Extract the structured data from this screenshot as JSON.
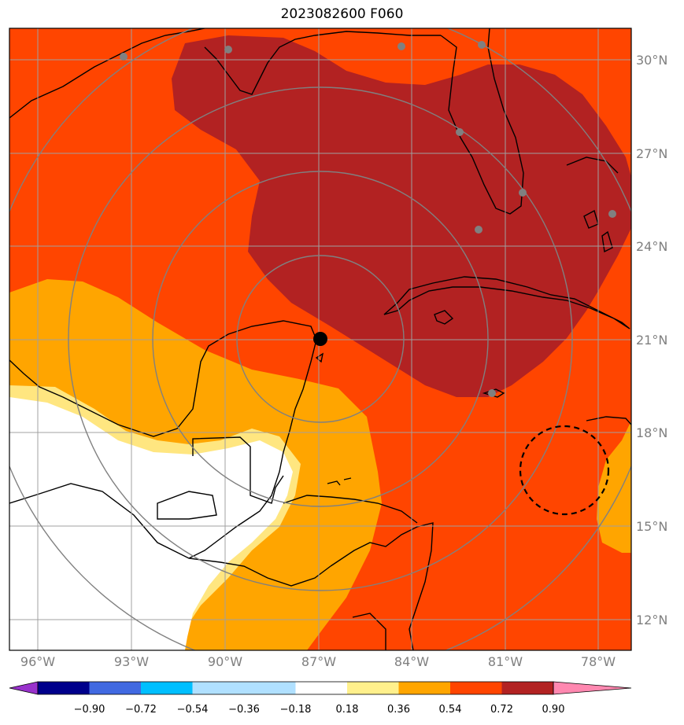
{
  "title": "2023082600 F060",
  "map": {
    "lat_labels": [
      "30°N",
      "27°N",
      "24°N",
      "21°N",
      "18°N",
      "15°N",
      "12°N"
    ],
    "lon_labels": [
      "96°W",
      "93°W",
      "90°W",
      "87°W",
      "84°W",
      "81°W",
      "78°W"
    ],
    "storm_center": {
      "lat": 21.1,
      "lon": -86.9
    },
    "colors": {
      "land_ocean_bg": "#ff4500",
      "high": "#b22222",
      "mid": "#ffa500",
      "low": "#ffe680",
      "none": "#ffffff",
      "coast": "#000000",
      "grid": "#a0a0a0",
      "rings": "#808080",
      "stations": "#808080"
    }
  },
  "colorbar": {
    "ticks": [
      "−0.90",
      "−0.72",
      "−0.54",
      "−0.36",
      "−0.18",
      "0.18",
      "0.36",
      "0.54",
      "0.72",
      "0.90"
    ],
    "colors": [
      "#9932cc",
      "#00008b",
      "#4169e1",
      "#00bfff",
      "#b0e0ff",
      "#ffffff",
      "#fff08c",
      "#ffa500",
      "#ff4500",
      "#b22222",
      "#ff88b0"
    ]
  }
}
